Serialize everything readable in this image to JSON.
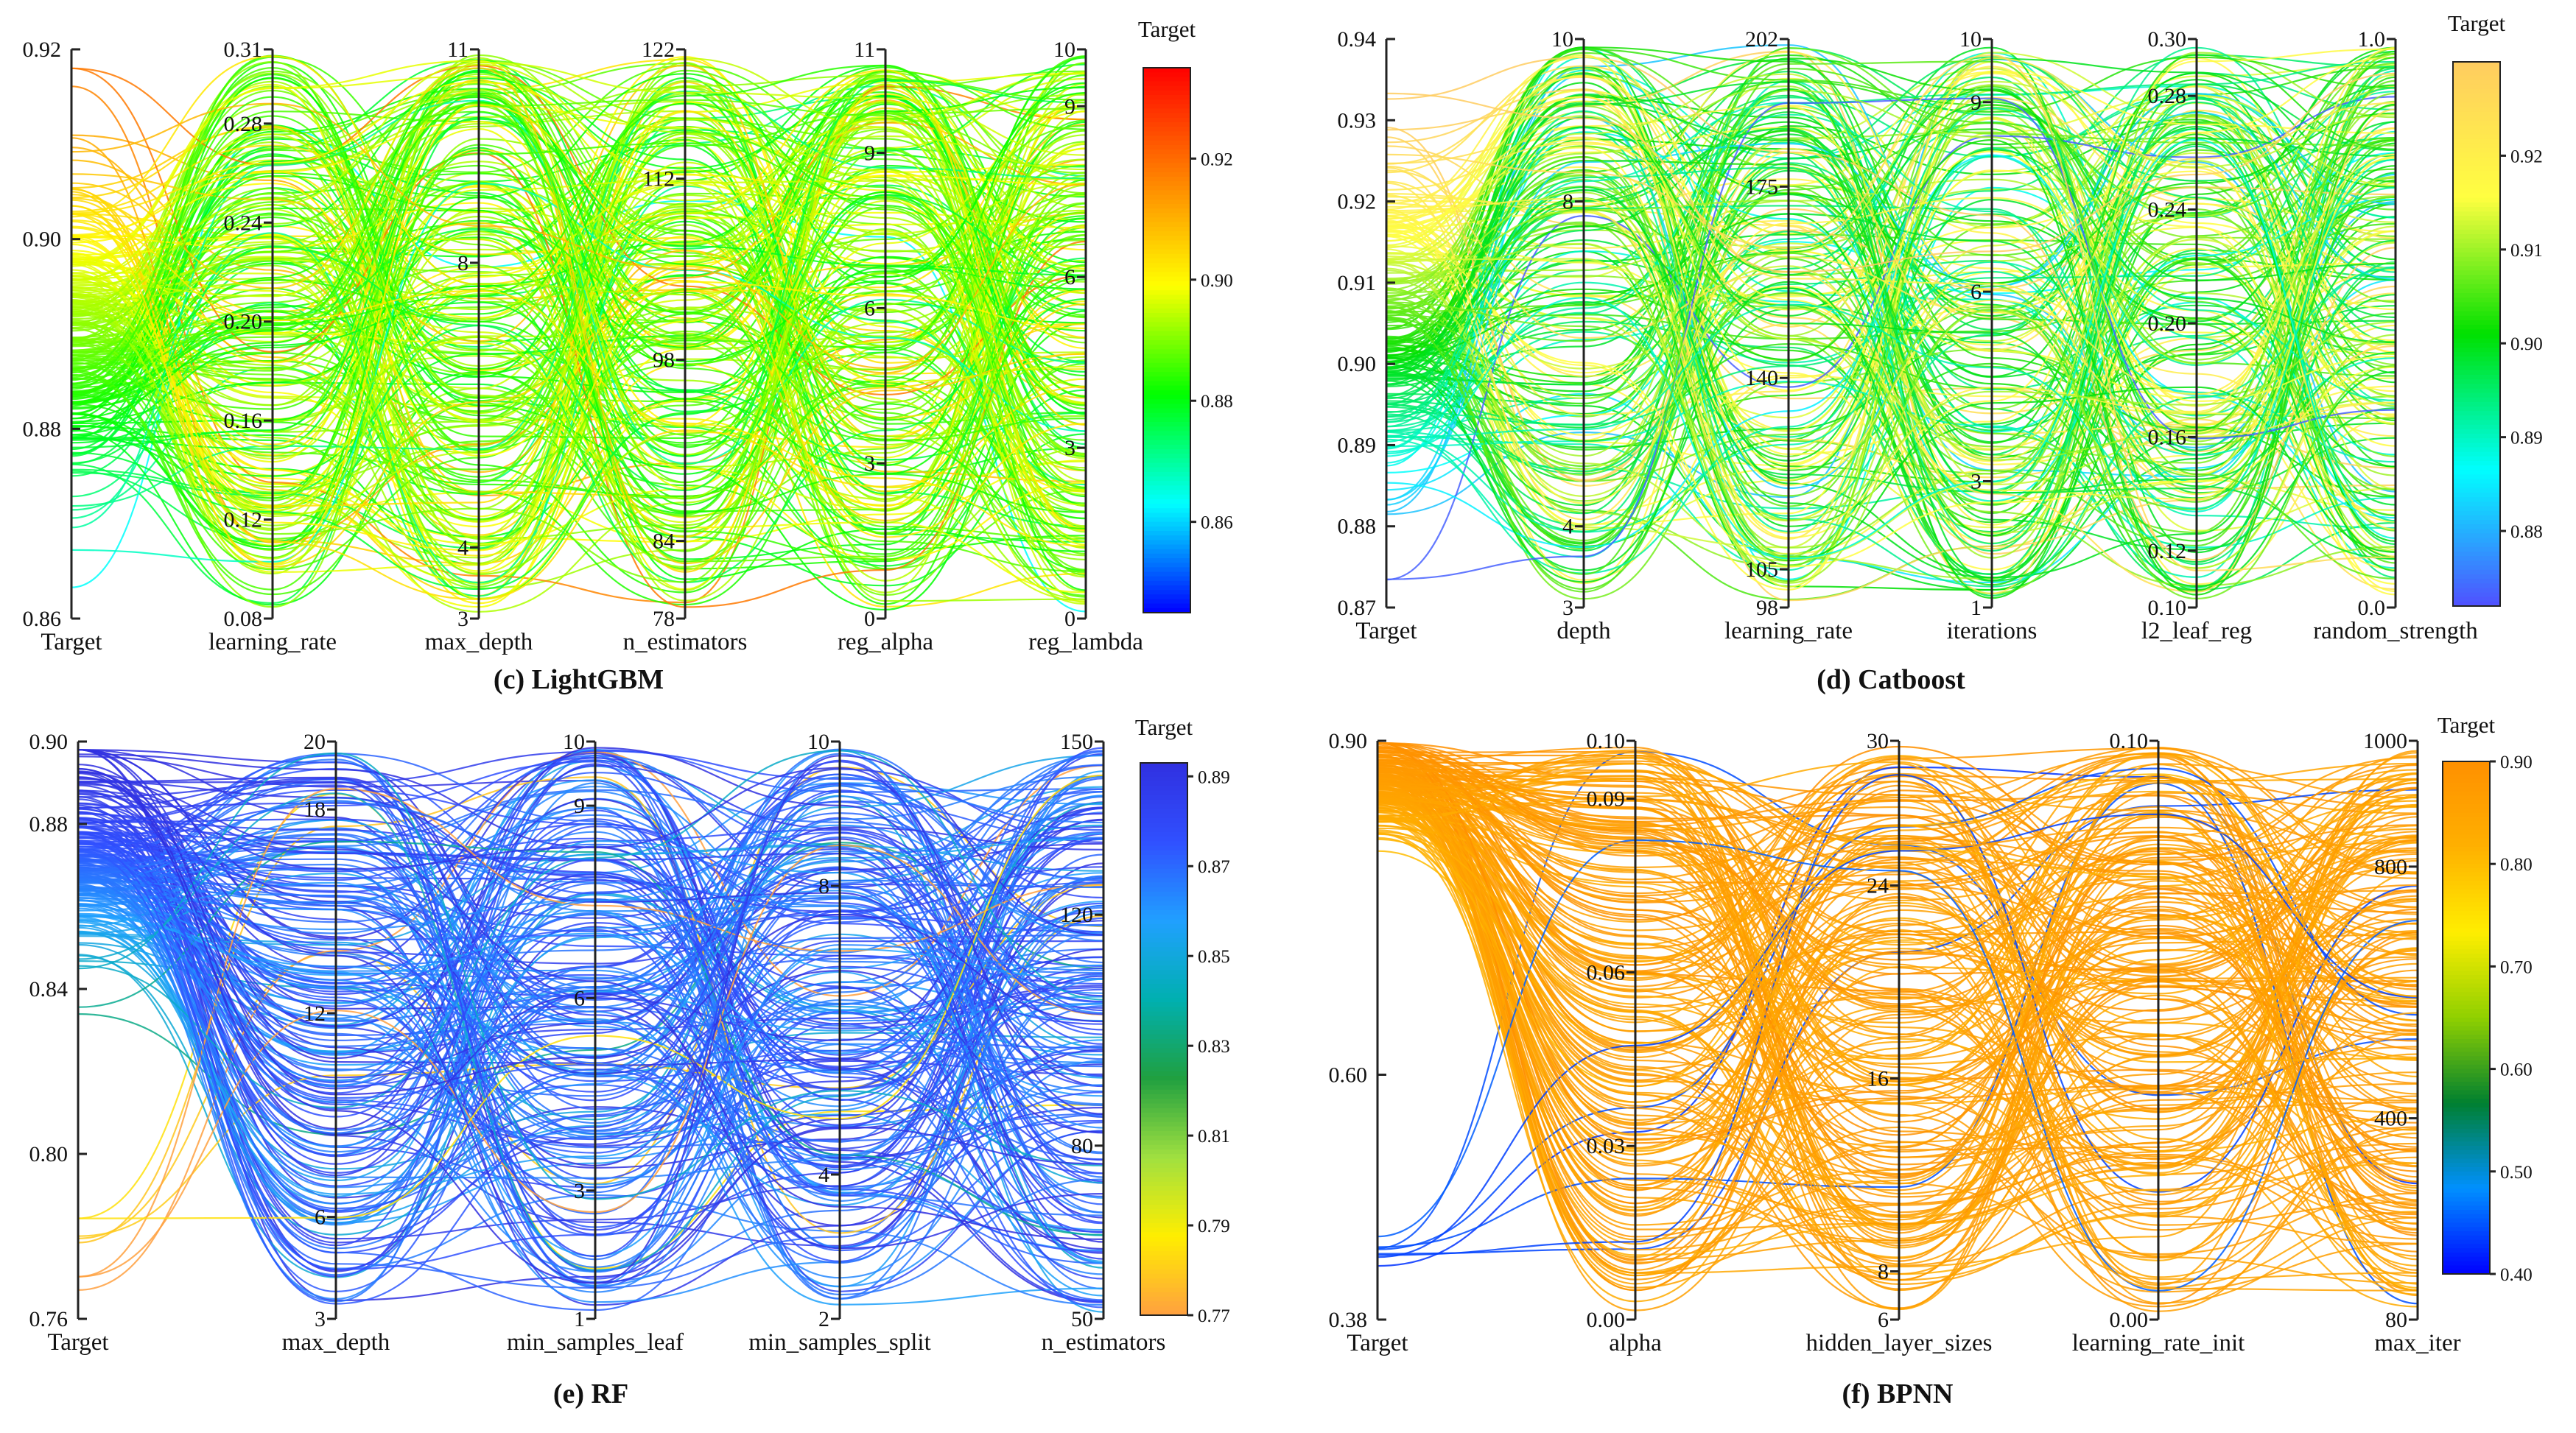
{
  "chart_data": [
    {
      "id": "c",
      "type": "parallel_coordinates",
      "caption": "(c) LightGBM",
      "line_count": 260,
      "seed": 11,
      "colorbar": {
        "title": "Target",
        "range": [
          0.845,
          0.935
        ],
        "ticks": [
          "0.86",
          "0.88",
          "0.90",
          "0.92"
        ],
        "tick_values": [
          0.86,
          0.88,
          0.9,
          0.92
        ],
        "colors": [
          "#0000ff",
          "#00ffff",
          "#00ff00",
          "#ffff00",
          "#ff8000",
          "#ff0000"
        ]
      },
      "target_distribution": {
        "mean": 0.89,
        "sd": 0.009
      },
      "axes": [
        {
          "label": "Target",
          "min": 0.86,
          "max": 0.92,
          "ticks": [
            "0.86",
            "0.88",
            "0.90",
            "0.92"
          ],
          "tick_values": [
            0.86,
            0.88,
            0.9,
            0.92
          ],
          "tick_side": "right"
        },
        {
          "label": "learning_rate",
          "min": 0.08,
          "max": 0.31,
          "ticks": [
            "0.08",
            "0.12",
            "0.16",
            "0.20",
            "0.24",
            "0.28",
            "0.31"
          ],
          "tick_values": [
            0.08,
            0.12,
            0.16,
            0.2,
            0.24,
            0.28,
            0.31
          ],
          "tick_side": "left"
        },
        {
          "label": "max_depth",
          "min": 3,
          "max": 11,
          "ticks": [
            "3",
            "4",
            "8",
            "11"
          ],
          "tick_values": [
            3,
            4,
            8,
            11
          ],
          "tick_side": "left"
        },
        {
          "label": "n_estimators",
          "min": 78,
          "max": 122,
          "ticks": [
            "78",
            "84",
            "98",
            "112",
            "122"
          ],
          "tick_values": [
            78,
            84,
            98,
            112,
            122
          ],
          "tick_side": "left"
        },
        {
          "label": "reg_alpha",
          "min": 0,
          "max": 11,
          "ticks": [
            "0",
            "3",
            "6",
            "9",
            "11"
          ],
          "tick_values": [
            0,
            3,
            6,
            9,
            11
          ],
          "tick_side": "left"
        },
        {
          "label": "reg_lambda",
          "min": 0,
          "max": 10,
          "ticks": [
            "0",
            "3",
            "6",
            "9",
            "10"
          ],
          "tick_values": [
            0,
            3,
            6,
            9,
            10
          ],
          "tick_side": "left"
        }
      ]
    },
    {
      "id": "d",
      "type": "parallel_coordinates",
      "caption": "(d) Catboost",
      "line_count": 230,
      "seed": 23,
      "colorbar": {
        "title": "Target",
        "range": [
          0.872,
          0.93
        ],
        "ticks": [
          "0.88",
          "0.89",
          "0.90",
          "0.91",
          "0.92"
        ],
        "tick_values": [
          0.88,
          0.89,
          0.9,
          0.91,
          0.92
        ],
        "colors": [
          "#5050ff",
          "#00ffff",
          "#00e000",
          "#ffff40",
          "#ffcc60"
        ]
      },
      "target_distribution": {
        "mean": 0.905,
        "sd": 0.011
      },
      "axes": [
        {
          "label": "Target",
          "min": 0.87,
          "max": 0.94,
          "ticks": [
            "0.87",
            "0.88",
            "0.89",
            "0.90",
            "0.91",
            "0.92",
            "0.93",
            "0.94"
          ],
          "tick_values": [
            0.87,
            0.88,
            0.89,
            0.9,
            0.91,
            0.92,
            0.93,
            0.94
          ],
          "tick_side": "right"
        },
        {
          "label": "depth",
          "min": 3,
          "max": 10,
          "ticks": [
            "3",
            "4",
            "8",
            "10"
          ],
          "tick_values": [
            3,
            4,
            8,
            10
          ],
          "tick_side": "left"
        },
        {
          "label": "learning_rate",
          "min": 98,
          "max": 202,
          "ticks": [
            "98",
            "105",
            "140",
            "175",
            "202"
          ],
          "tick_values": [
            98,
            105,
            140,
            175,
            202
          ],
          "tick_side": "left"
        },
        {
          "label": "iterations",
          "min": 1,
          "max": 10,
          "ticks": [
            "1",
            "3",
            "6",
            "9",
            "10"
          ],
          "tick_values": [
            1,
            3,
            6,
            9,
            10
          ],
          "tick_side": "left"
        },
        {
          "label": "l2_leaf_reg",
          "min": 0.1,
          "max": 0.3,
          "ticks": [
            "0.10",
            "0.12",
            "0.16",
            "0.20",
            "0.24",
            "0.28",
            "0.30"
          ],
          "tick_values": [
            0.1,
            0.12,
            0.16,
            0.2,
            0.24,
            0.28,
            0.3
          ],
          "tick_side": "left"
        },
        {
          "label": "random_strength",
          "min": 0.0,
          "max": 1.0,
          "ticks": [
            "0.0",
            "1.0"
          ],
          "tick_values": [
            0.0,
            1.0
          ],
          "tick_side": "left"
        }
      ]
    },
    {
      "id": "e",
      "type": "parallel_coordinates",
      "caption": "(e) RF",
      "line_count": 230,
      "seed": 37,
      "colorbar": {
        "title": "Target",
        "range": [
          0.77,
          0.893
        ],
        "ticks": [
          "0.77",
          "0.79",
          "0.81",
          "0.83",
          "0.85",
          "0.87",
          "0.89"
        ],
        "tick_values": [
          0.77,
          0.79,
          0.81,
          0.83,
          0.85,
          0.87,
          0.89
        ],
        "colors": [
          "#ffa040",
          "#ffee00",
          "#a0e040",
          "#20a040",
          "#00b0b0",
          "#20a0ff",
          "#3050ff",
          "#3030e0"
        ]
      },
      "target_distribution": {
        "mean": 0.872,
        "sd": 0.013,
        "outlier_fraction": 0.05,
        "outlier_value": 0.778
      },
      "axes": [
        {
          "label": "Target",
          "min": 0.76,
          "max": 0.9,
          "ticks": [
            "0.76",
            "0.80",
            "0.84",
            "0.88",
            "0.90"
          ],
          "tick_values": [
            0.76,
            0.8,
            0.84,
            0.88,
            0.9
          ],
          "tick_side": "right"
        },
        {
          "label": "max_depth",
          "min": 3,
          "max": 20,
          "ticks": [
            "3",
            "6",
            "12",
            "18",
            "20"
          ],
          "tick_values": [
            3,
            6,
            12,
            18,
            20
          ],
          "tick_side": "left"
        },
        {
          "label": "min_samples_leaf",
          "min": 1,
          "max": 10,
          "ticks": [
            "1",
            "3",
            "6",
            "9",
            "10"
          ],
          "tick_values": [
            1,
            3,
            6,
            9,
            10
          ],
          "tick_side": "left"
        },
        {
          "label": "min_samples_split",
          "min": 2,
          "max": 10,
          "ticks": [
            "2",
            "4",
            "8",
            "10"
          ],
          "tick_values": [
            2,
            4,
            8,
            10
          ],
          "tick_side": "left"
        },
        {
          "label": "n_estimators",
          "min": 50,
          "max": 150,
          "ticks": [
            "50",
            "80",
            "120",
            "150"
          ],
          "tick_values": [
            50,
            80,
            120,
            150
          ],
          "tick_side": "left"
        }
      ]
    },
    {
      "id": "f",
      "type": "parallel_coordinates",
      "caption": "(f) BPNN",
      "line_count": 220,
      "seed": 53,
      "colorbar": {
        "title": "Target",
        "range": [
          0.4,
          0.9
        ],
        "ticks": [
          "0.40",
          "0.50",
          "0.60",
          "0.70",
          "0.80",
          "0.90"
        ],
        "tick_values": [
          0.4,
          0.5,
          0.6,
          0.7,
          0.8,
          0.9
        ],
        "colors": [
          "#0000ff",
          "#0090ff",
          "#008030",
          "#90d000",
          "#ffee00",
          "#ffb000",
          "#ff9000"
        ]
      },
      "target_distribution": {
        "mean": 0.86,
        "sd": 0.02,
        "outlier_fraction": 0.03,
        "outlier_value": 0.44
      },
      "axes": [
        {
          "label": "Target",
          "min": 0.38,
          "max": 0.9,
          "ticks": [
            "0.38",
            "0.60",
            "0.90"
          ],
          "tick_values": [
            0.38,
            0.6,
            0.9
          ],
          "tick_side": "right"
        },
        {
          "label": "alpha",
          "min": 0.0,
          "max": 0.1,
          "ticks": [
            "0.00",
            "0.03",
            "0.06",
            "0.09",
            "0.10"
          ],
          "tick_values": [
            0.0,
            0.03,
            0.06,
            0.09,
            0.1
          ],
          "tick_side": "left"
        },
        {
          "label": "hidden_layer_sizes",
          "min": 6,
          "max": 30,
          "ticks": [
            "6",
            "8",
            "16",
            "24",
            "30"
          ],
          "tick_values": [
            6,
            8,
            16,
            24,
            30
          ],
          "tick_side": "left"
        },
        {
          "label": "learning_rate_init",
          "min": 0.0,
          "max": 0.1,
          "ticks": [
            "0.00",
            "0.10"
          ],
          "tick_values": [
            0.0,
            0.1
          ],
          "tick_side": "left"
        },
        {
          "label": "max_iter",
          "min": 80,
          "max": 1000,
          "ticks": [
            "80",
            "400",
            "800",
            "1000"
          ],
          "tick_values": [
            80,
            400,
            800,
            1000
          ],
          "tick_side": "left"
        }
      ]
    }
  ]
}
